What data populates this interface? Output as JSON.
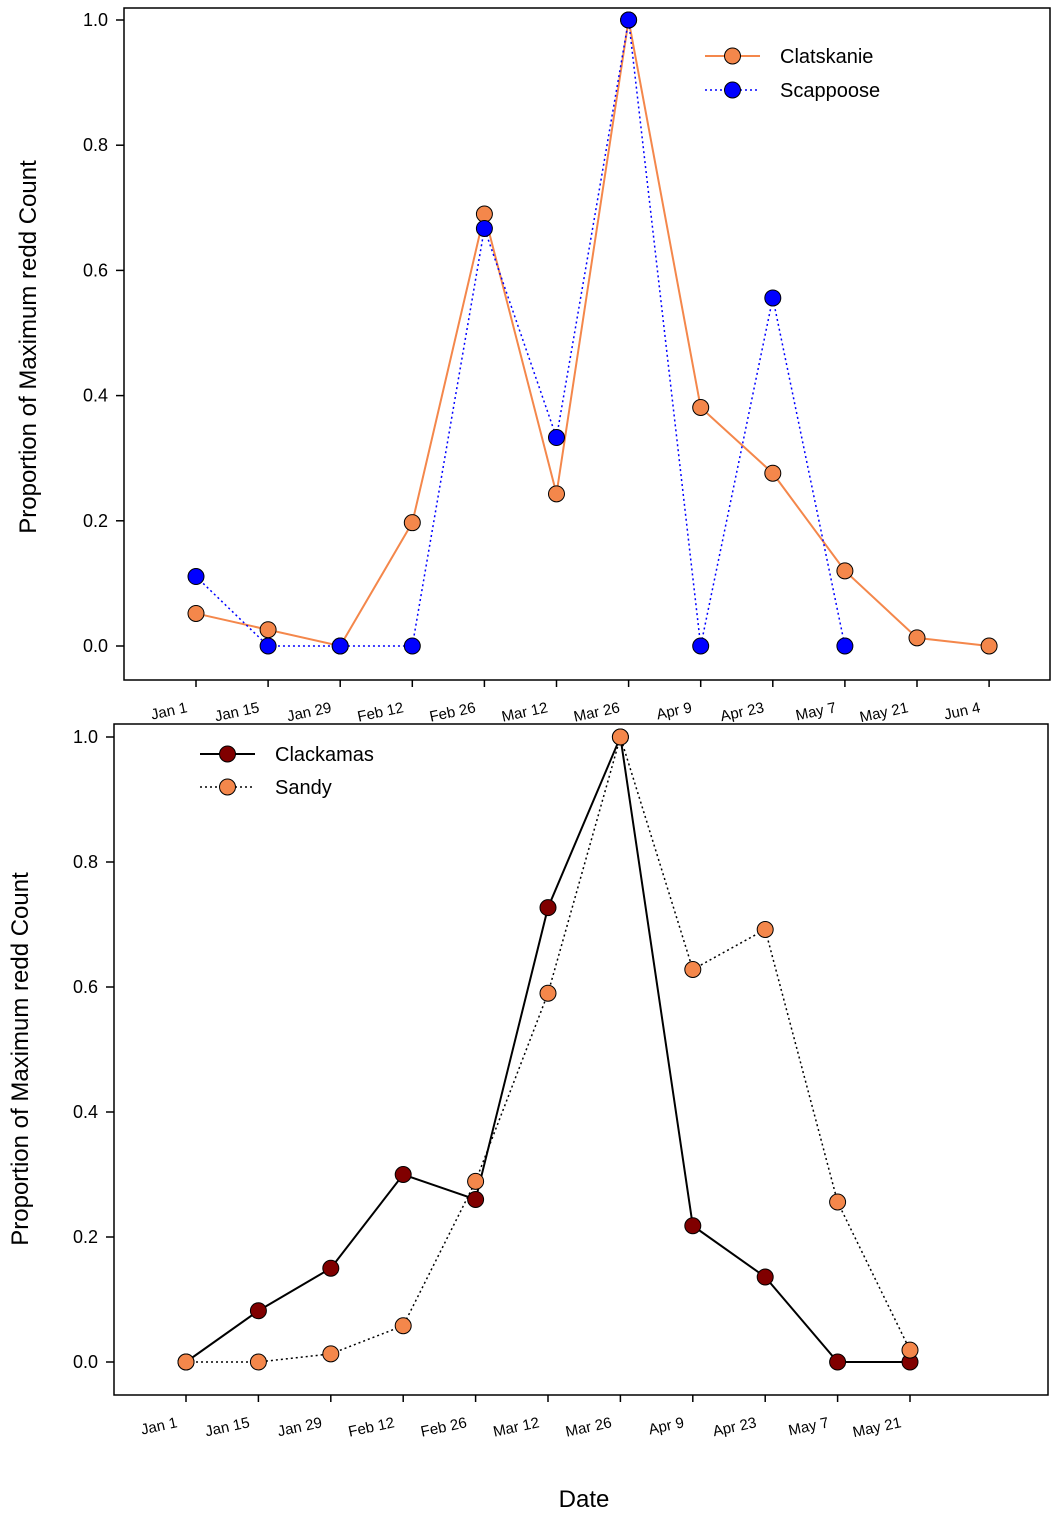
{
  "xlabel": "Date",
  "chart_data": [
    {
      "type": "line",
      "title": "",
      "xlabel": "",
      "ylabel": "Proportion of Maximum redd Count",
      "categories": [
        "Jan 1",
        "Jan 15",
        "Jan 29",
        "Feb 12",
        "Feb 26",
        "Mar 12",
        "Mar 26",
        "Apr 9",
        "Apr 23",
        "May 7",
        "May 21",
        "Jun 4"
      ],
      "ylim": [
        0,
        1
      ],
      "yticks": [
        "0.0",
        "0.2",
        "0.4",
        "0.6",
        "0.8",
        "1.0"
      ],
      "legend_position": "top-right",
      "grid": false,
      "series": [
        {
          "name": "Clatskanie",
          "line_style": "solid",
          "line_color": "#f4874b",
          "marker_color": "#f4874b",
          "values": [
            0.052,
            0.026,
            0.0,
            0.197,
            0.69,
            0.243,
            1.0,
            0.381,
            0.276,
            0.12,
            0.013,
            0.0
          ]
        },
        {
          "name": "Scappoose",
          "line_style": "dotted",
          "line_color": "#0000ff",
          "marker_color": "#0000ff",
          "values": [
            0.111,
            0.0,
            0.0,
            0.0,
            0.667,
            0.333,
            1.0,
            0.0,
            0.556,
            0.0,
            null,
            null
          ]
        }
      ]
    },
    {
      "type": "line",
      "title": "",
      "xlabel": "Date",
      "ylabel": "Proportion of Maximum redd Count",
      "categories": [
        "Jan 1",
        "Jan 15",
        "Jan 29",
        "Feb 12",
        "Feb 26",
        "Mar 12",
        "Mar 26",
        "Apr 9",
        "Apr 23",
        "May 7",
        "May 21"
      ],
      "ylim": [
        0,
        1
      ],
      "yticks": [
        "0.0",
        "0.2",
        "0.4",
        "0.6",
        "0.8",
        "1.0"
      ],
      "legend_position": "top-left",
      "grid": false,
      "series": [
        {
          "name": "Clackamas",
          "line_style": "solid",
          "line_color": "#000000",
          "marker_color": "#800000",
          "values": [
            0.0,
            0.082,
            0.15,
            0.3,
            0.26,
            0.727,
            1.0,
            0.218,
            0.136,
            0.0,
            0.0
          ]
        },
        {
          "name": "Sandy",
          "line_style": "dotted",
          "line_color": "#000000",
          "marker_color": "#f4874b",
          "values": [
            0.0,
            0.0,
            0.013,
            0.058,
            0.289,
            0.59,
            1.0,
            0.628,
            0.692,
            0.256,
            0.019
          ]
        }
      ]
    }
  ]
}
